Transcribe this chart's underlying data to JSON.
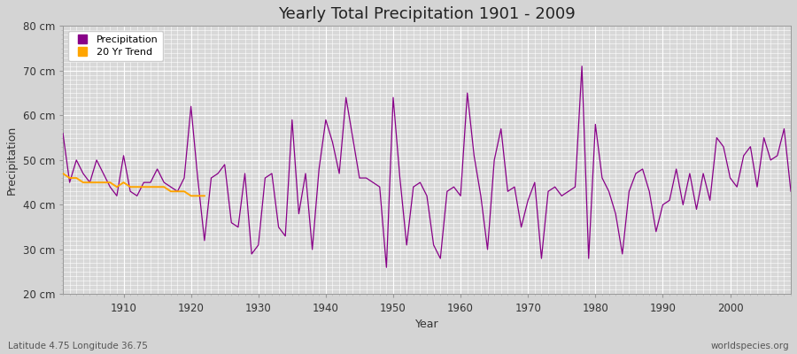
{
  "title": "Yearly Total Precipitation 1901 - 2009",
  "xlabel": "Year",
  "ylabel": "Precipitation",
  "subtitle": "Latitude 4.75 Longitude 36.75",
  "watermark": "worldspecies.org",
  "ylim": [
    20,
    80
  ],
  "yticks": [
    20,
    30,
    40,
    50,
    60,
    70,
    80
  ],
  "ytick_labels": [
    "20 cm",
    "30 cm",
    "40 cm",
    "50 cm",
    "60 cm",
    "70 cm",
    "80 cm"
  ],
  "line_color": "#880088",
  "trend_color": "#FFA500",
  "bg_color": "#d8d8d8",
  "legend_entries": [
    "Precipitation",
    "20 Yr Trend"
  ],
  "years": [
    1901,
    1902,
    1903,
    1904,
    1905,
    1906,
    1907,
    1908,
    1909,
    1910,
    1911,
    1912,
    1913,
    1914,
    1915,
    1916,
    1917,
    1918,
    1919,
    1920,
    1921,
    1922,
    1923,
    1924,
    1925,
    1926,
    1927,
    1928,
    1929,
    1930,
    1931,
    1932,
    1933,
    1934,
    1935,
    1936,
    1937,
    1938,
    1939,
    1940,
    1941,
    1942,
    1943,
    1944,
    1945,
    1946,
    1947,
    1948,
    1949,
    1950,
    1951,
    1952,
    1953,
    1954,
    1955,
    1956,
    1957,
    1958,
    1959,
    1960,
    1961,
    1962,
    1963,
    1964,
    1965,
    1966,
    1967,
    1968,
    1969,
    1970,
    1971,
    1972,
    1973,
    1974,
    1975,
    1976,
    1977,
    1978,
    1979,
    1980,
    1981,
    1982,
    1983,
    1984,
    1985,
    1986,
    1987,
    1988,
    1989,
    1990,
    1991,
    1992,
    1993,
    1994,
    1995,
    1996,
    1997,
    1998,
    1999,
    2000,
    2001,
    2002,
    2003,
    2004,
    2005,
    2006,
    2007,
    2008,
    2009
  ],
  "precip": [
    56,
    45,
    50,
    47,
    45,
    50,
    47,
    44,
    42,
    51,
    43,
    42,
    45,
    45,
    48,
    45,
    44,
    43,
    46,
    62,
    46,
    32,
    46,
    47,
    49,
    36,
    35,
    47,
    29,
    31,
    46,
    47,
    35,
    33,
    59,
    38,
    47,
    30,
    48,
    59,
    54,
    47,
    64,
    55,
    46,
    46,
    45,
    44,
    26,
    64,
    46,
    31,
    44,
    45,
    42,
    31,
    28,
    43,
    44,
    42,
    65,
    51,
    42,
    30,
    50,
    57,
    43,
    44,
    35,
    41,
    45,
    28,
    43,
    44,
    42,
    43,
    44,
    71,
    28,
    58,
    46,
    43,
    38,
    29,
    43,
    47,
    48,
    43,
    34,
    40,
    41,
    48,
    40,
    47,
    39,
    47,
    41,
    55,
    53,
    46,
    44,
    51,
    53,
    44,
    55,
    50,
    51,
    57,
    43
  ],
  "trend_years": [
    1901,
    1902,
    1903,
    1904,
    1905,
    1906,
    1907,
    1908,
    1909,
    1910,
    1911,
    1912,
    1913,
    1914,
    1915,
    1916,
    1917,
    1918,
    1919,
    1920,
    1921,
    1922
  ],
  "trend_values": [
    47,
    46,
    46,
    45,
    45,
    45,
    45,
    45,
    44,
    45,
    44,
    44,
    44,
    44,
    44,
    44,
    43,
    43,
    43,
    42,
    42,
    42
  ]
}
